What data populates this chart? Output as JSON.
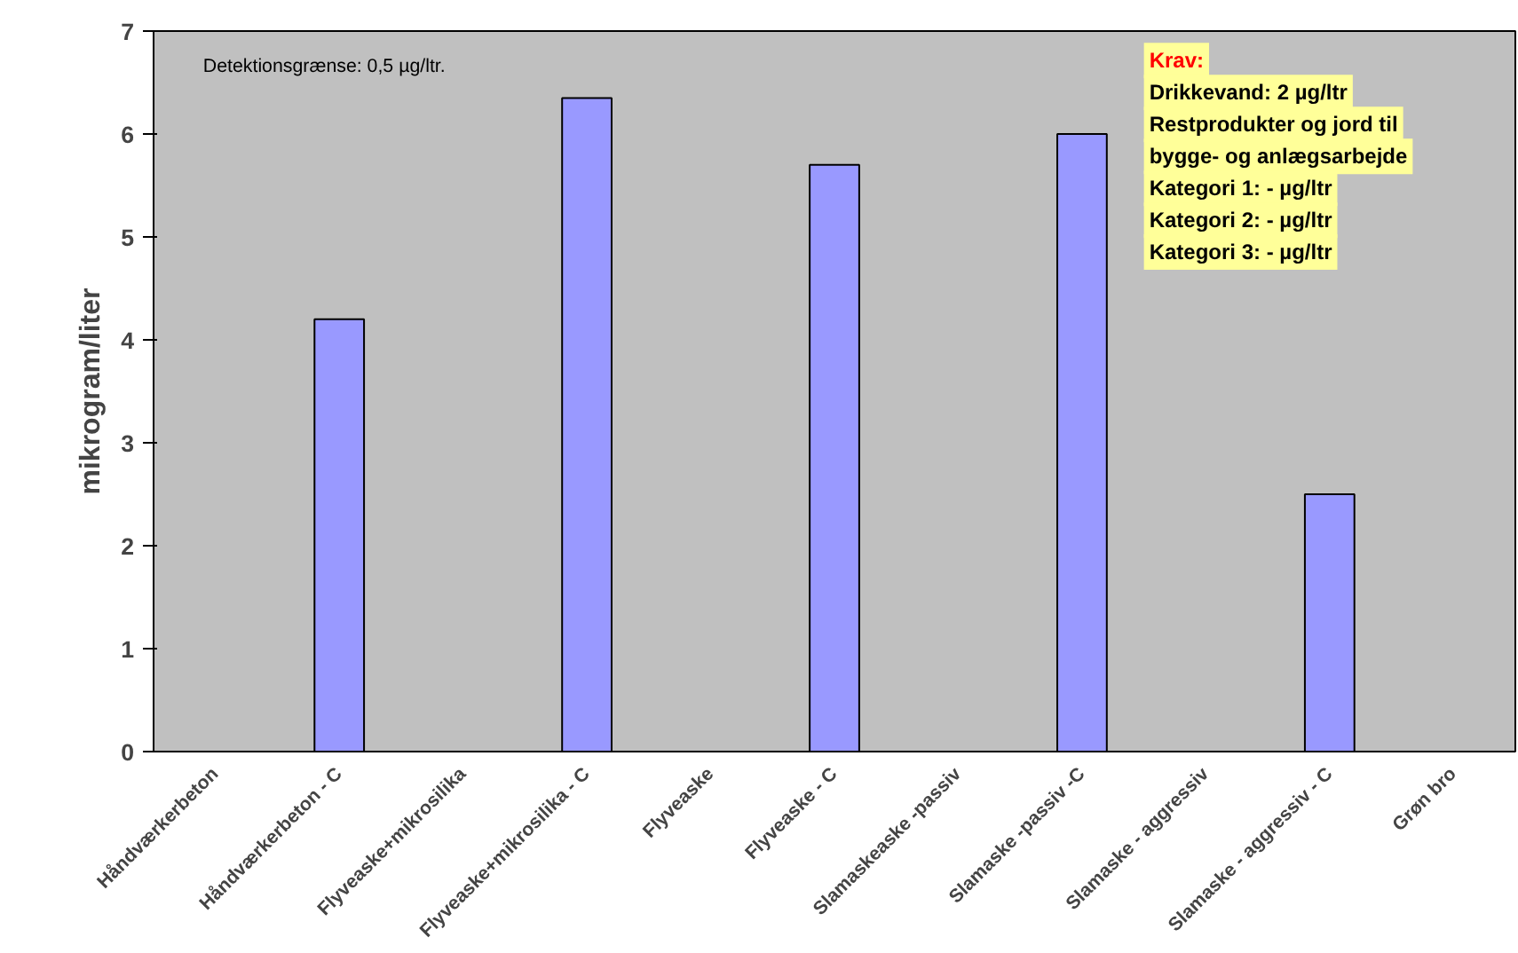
{
  "chart_data": {
    "type": "bar",
    "ylabel": "mikrogram/liter",
    "categories": [
      "Håndværkerbeton",
      "Håndværkerbeton - C",
      "Flyveaske+mikrosilika",
      "Flyveaske+mikrosilika - C",
      "Flyveaske",
      "Flyveaske - C",
      "Slamaskeaske -passiv",
      "Slamaske -passiv -C",
      "Slamaske - aggressiv",
      "Slamaske - aggressiv - C",
      "Grøn bro"
    ],
    "values": [
      null,
      4.2,
      null,
      6.35,
      null,
      5.7,
      null,
      6.0,
      null,
      2.5,
      null
    ],
    "color": "#9999ff",
    "ylim": [
      0,
      7
    ],
    "yticks": [
      0,
      1,
      2,
      3,
      4,
      5,
      6,
      7
    ],
    "grid": false,
    "annotations": [
      "Detektionsgrænse: 0,5 µg/ltr.",
      "Krav:",
      "Drikkevand: 2 µg/ltr",
      "Restprodukter og jord til",
      "bygge- og anlægsarbejde",
      "Kategori 1: - µg/ltr",
      "Kategori 2: - µg/ltr",
      "Kategori 3: - µg/ltr"
    ]
  }
}
